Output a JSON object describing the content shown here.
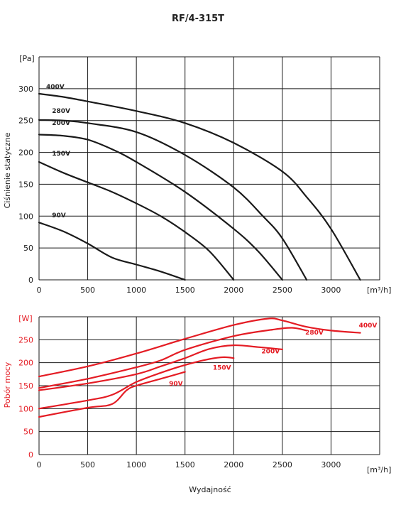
{
  "chart_data": [
    {
      "type": "line",
      "title": "RF/4-315T",
      "ylabel": "Ciśnienie statyczne",
      "y_unit": "[Pa]",
      "x_unit": "[m³/h]",
      "xlim": [
        0,
        3500
      ],
      "ylim": [
        0,
        350
      ],
      "x_ticks": [
        0,
        500,
        1000,
        1500,
        2000,
        2500,
        3000
      ],
      "y_ticks": [
        0,
        50,
        100,
        150,
        200,
        250,
        300
      ],
      "grid": true,
      "line_color": "#1a1a1a",
      "series": [
        {
          "name": "400V",
          "x": [
            0,
            250,
            500,
            1000,
            1500,
            2000,
            2500,
            2750,
            3000,
            3300
          ],
          "y": [
            292,
            287,
            280,
            265,
            246,
            215,
            170,
            130,
            80,
            0
          ]
        },
        {
          "name": "280V",
          "x": [
            0,
            250,
            500,
            1000,
            1500,
            2000,
            2300,
            2500,
            2750
          ],
          "y": [
            251,
            250,
            246,
            232,
            196,
            145,
            100,
            65,
            0
          ]
        },
        {
          "name": "200V",
          "x": [
            0,
            250,
            500,
            750,
            1000,
            1500,
            2000,
            2250,
            2500
          ],
          "y": [
            228,
            226,
            220,
            205,
            185,
            138,
            80,
            45,
            0
          ]
        },
        {
          "name": "150V",
          "x": [
            0,
            250,
            500,
            750,
            1000,
            1250,
            1500,
            1750,
            2000
          ],
          "y": [
            185,
            168,
            153,
            138,
            120,
            100,
            75,
            45,
            0
          ]
        },
        {
          "name": "90V",
          "x": [
            0,
            250,
            500,
            750,
            1000,
            1250,
            1500
          ],
          "y": [
            90,
            76,
            57,
            35,
            24,
            13,
            0
          ]
        }
      ]
    },
    {
      "type": "line",
      "ylabel": "Pobór mocy",
      "y_unit": "[W]",
      "x_unit": "[m³/h]",
      "xlabel": "Wydajność",
      "xlim": [
        0,
        3500
      ],
      "ylim": [
        0,
        300
      ],
      "x_ticks": [
        0,
        500,
        1000,
        1500,
        2000,
        2500,
        3000
      ],
      "y_ticks": [
        0,
        50,
        100,
        150,
        200,
        250
      ],
      "grid": true,
      "line_color": "#e41c24",
      "series": [
        {
          "name": "400V",
          "x": [
            0,
            500,
            1000,
            1500,
            2000,
            2350,
            2500,
            2750,
            3000,
            3300
          ],
          "y": [
            170,
            192,
            220,
            252,
            282,
            296,
            292,
            278,
            270,
            265
          ]
        },
        {
          "name": "280V",
          "x": [
            0,
            500,
            1000,
            1250,
            1500,
            2000,
            2400,
            2600,
            2750
          ],
          "y": [
            145,
            165,
            190,
            205,
            228,
            258,
            272,
            276,
            270
          ]
        },
        {
          "name": "200V",
          "x": [
            0,
            500,
            1000,
            1250,
            1500,
            1750,
            2000,
            2250,
            2500
          ],
          "y": [
            140,
            155,
            175,
            192,
            210,
            230,
            238,
            234,
            229
          ]
        },
        {
          "name": "150V",
          "x": [
            0,
            500,
            750,
            1000,
            1250,
            1500,
            1750,
            1900,
            2000
          ],
          "y": [
            100,
            118,
            130,
            158,
            178,
            195,
            208,
            212,
            210
          ]
        },
        {
          "name": "90V",
          "x": [
            0,
            500,
            750,
            900,
            1000,
            1250,
            1500
          ],
          "y": [
            82,
            102,
            110,
            140,
            150,
            165,
            180
          ]
        }
      ]
    }
  ]
}
